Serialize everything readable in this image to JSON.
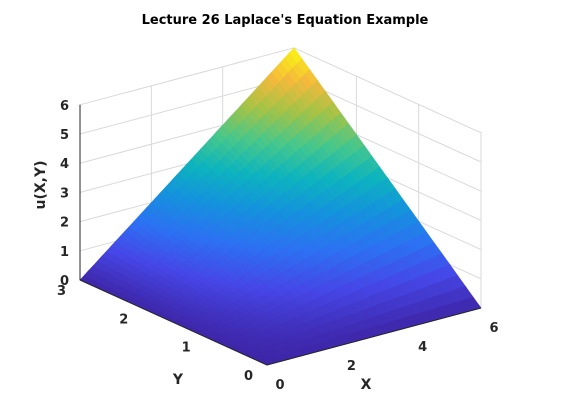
{
  "chart_data": {
    "type": "surface",
    "title": "Lecture 26 Laplace's Equation Example",
    "xlabel": "X",
    "ylabel": "Y",
    "zlabel": "u(X,Y)",
    "xlim": [
      0,
      6
    ],
    "ylim": [
      0,
      3
    ],
    "zlim": [
      0,
      6
    ],
    "x_ticks": [
      "0",
      "2",
      "4",
      "6"
    ],
    "y_ticks": [
      "0",
      "1",
      "2",
      "3"
    ],
    "z_ticks": [
      "0",
      "1",
      "2",
      "3",
      "4",
      "5",
      "6"
    ],
    "grid": true,
    "colormap": "parula",
    "boundary_conditions": {
      "u(x,0)": "0",
      "u(0,y)": "0",
      "u(6,y)": "2y",
      "u(x,3)": "x"
    },
    "sample_values": [
      {
        "x": 0,
        "y": 3,
        "u": 0
      },
      {
        "x": 3,
        "y": 3,
        "u": 3
      },
      {
        "x": 6,
        "y": 3,
        "u": 6
      },
      {
        "x": 6,
        "y": 1.5,
        "u": 3
      },
      {
        "x": 6,
        "y": 0,
        "u": 0
      },
      {
        "x": 0,
        "y": 0,
        "u": 0
      }
    ]
  }
}
